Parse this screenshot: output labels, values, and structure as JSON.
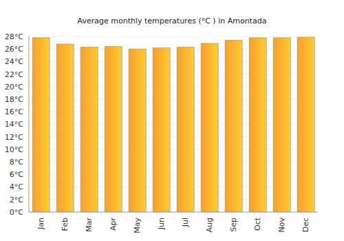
{
  "chart_data": {
    "type": "bar",
    "title": "Average monthly temperatures (°C ) in Amontada",
    "categories": [
      "Jan",
      "Feb",
      "Mar",
      "Apr",
      "May",
      "Jun",
      "Jul",
      "Aug",
      "Sep",
      "Oct",
      "Nov",
      "Dec"
    ],
    "values": [
      27.8,
      26.8,
      26.3,
      26.4,
      26.0,
      26.2,
      26.3,
      26.9,
      27.4,
      27.8,
      27.8,
      27.9
    ],
    "color": "#f7a030",
    "ylim": [
      0,
      28
    ],
    "yticks": [
      {
        "value": 0,
        "label": "0°C"
      },
      {
        "value": 2,
        "label": "2°C"
      },
      {
        "value": 4,
        "label": "4°C"
      },
      {
        "value": 6,
        "label": "6°C"
      },
      {
        "value": 8,
        "label": "8°C"
      },
      {
        "value": 10,
        "label": "10°C"
      },
      {
        "value": 12,
        "label": "12°C"
      },
      {
        "value": 14,
        "label": "14°C"
      },
      {
        "value": 16,
        "label": "16°C"
      },
      {
        "value": 18,
        "label": "18°C"
      },
      {
        "value": 20,
        "label": "20°C"
      },
      {
        "value": 22,
        "label": "22°C"
      },
      {
        "value": 24,
        "label": "24°C"
      },
      {
        "value": 26,
        "label": "26°C"
      },
      {
        "value": 28,
        "label": "28°C"
      }
    ],
    "grid": true
  }
}
